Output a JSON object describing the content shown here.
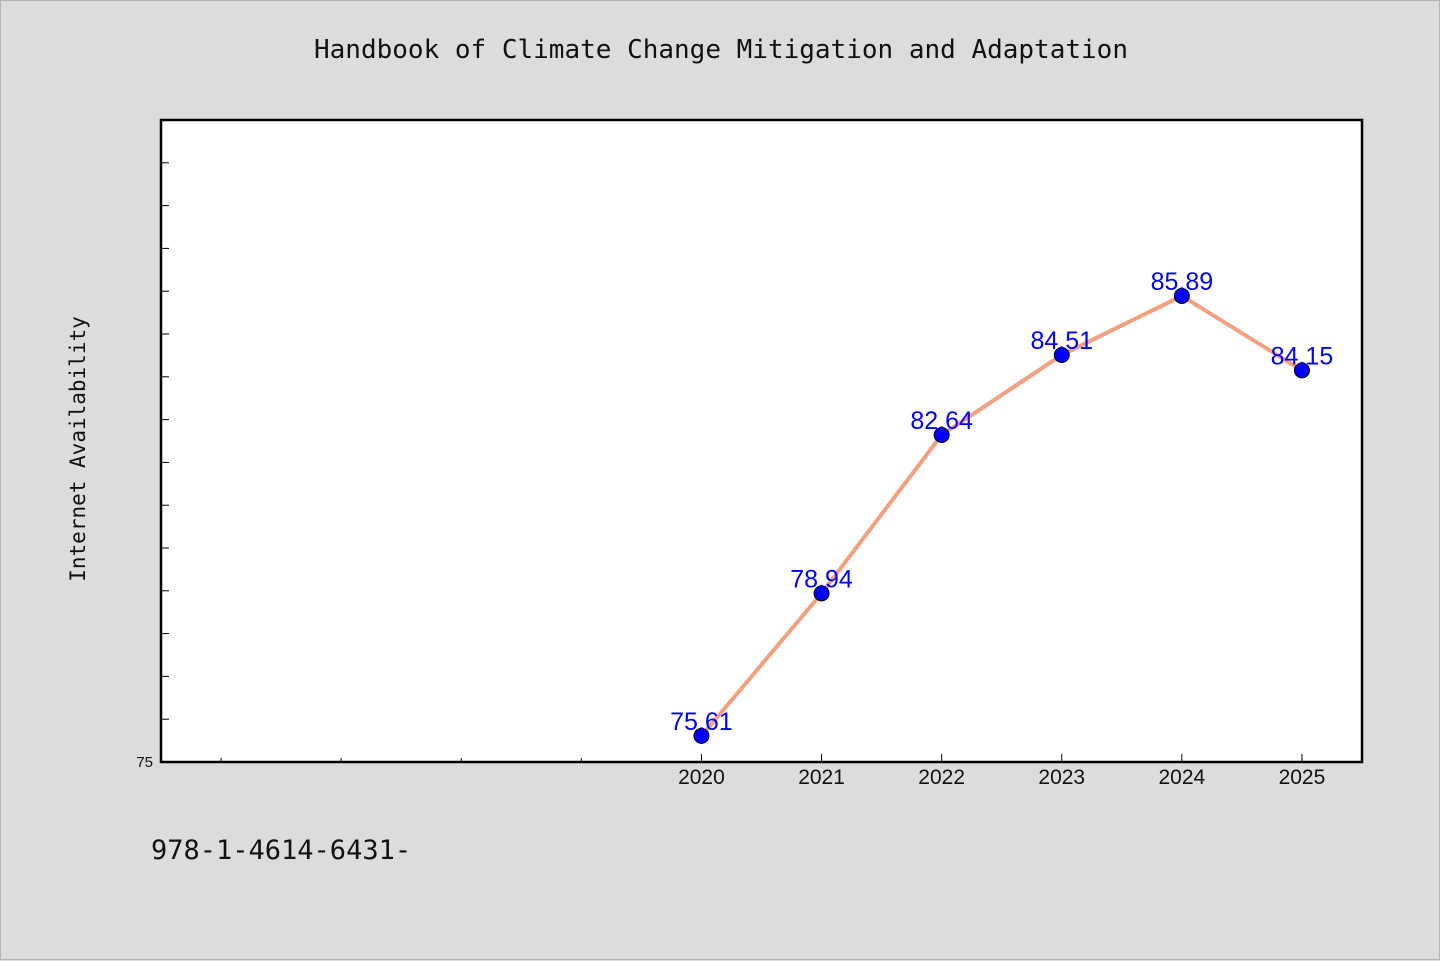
{
  "chart_data": {
    "type": "line",
    "title": "Handbook of Climate Change Mitigation and Adaptation",
    "ylabel": "Internet Availability",
    "xlabel": "",
    "categories": [
      "2020",
      "2021",
      "2022",
      "2023",
      "2024",
      "2025"
    ],
    "values": [
      75.61,
      78.94,
      82.64,
      84.51,
      85.89,
      84.15
    ],
    "data_labels": [
      "75.61",
      "78.94",
      "82.64",
      "84.51",
      "85.89",
      "84.15"
    ],
    "ylim": [
      75,
      90
    ],
    "y_tick_labels": [
      "75"
    ],
    "x_range": [
      2015.5,
      2025.5
    ],
    "grid": false,
    "legend": "none",
    "colors": {
      "line": "#f4a07e",
      "marker": "#0000ff",
      "label": "#0000ff"
    }
  },
  "footer": {
    "text": "978-1-4614-6431-"
  }
}
